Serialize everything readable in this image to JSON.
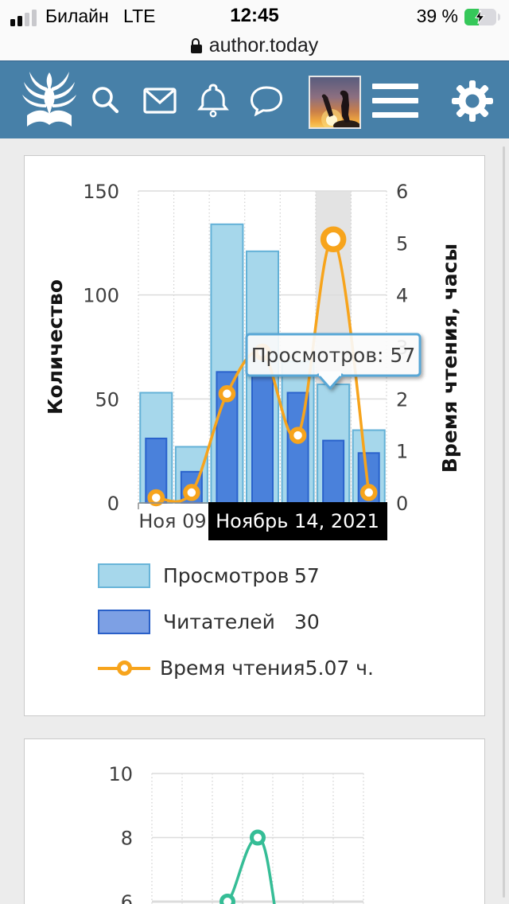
{
  "status_bar": {
    "carrier": "Билайн",
    "network": "LTE",
    "time": "12:45",
    "battery": "39 %"
  },
  "url_bar": {
    "domain": "author.today"
  },
  "header": {
    "bg_color": "#4780a8",
    "icons": [
      "logo",
      "search",
      "mail",
      "bell",
      "chat",
      "avatar",
      "menu",
      "gear"
    ]
  },
  "chart_data": [
    {
      "type": "bar",
      "num_columns": 7,
      "x_visible_label": "Ноя 09",
      "selected_column": 6,
      "selected_date_label": "Ноябрь 14, 2021",
      "tooltip_text": "Просмотров: 57",
      "ylabel_left": "Количество",
      "ylabel_right": "Время чтения, часы",
      "yticks_left": [
        0,
        50,
        100,
        150
      ],
      "yticks_right": [
        0,
        1,
        2,
        3,
        4,
        5,
        6
      ],
      "ylim_left": [
        0,
        150
      ],
      "ylim_right": [
        0,
        6
      ],
      "highlight_color": "#e3e3e3",
      "series": [
        {
          "name": "Просмотров",
          "kind": "bar",
          "axis": "left",
          "color": "#a6d7eb",
          "border": "#63b1d7",
          "values": [
            53,
            27,
            134,
            121,
            68,
            57,
            35
          ]
        },
        {
          "name": "Читателей",
          "kind": "bar",
          "axis": "left",
          "color": "#4a81db",
          "border": "#2a62cc",
          "values": [
            31,
            15,
            63,
            61,
            53,
            30,
            24
          ]
        },
        {
          "name": "Время чтения",
          "kind": "line",
          "axis": "right",
          "color": "#f7a41c",
          "values": [
            0.1,
            0.2,
            2.1,
            2.9,
            1.3,
            5.07,
            0.2
          ]
        }
      ],
      "legend": [
        {
          "label": "Просмотров",
          "value": "57"
        },
        {
          "label": "Читателей",
          "value": "30"
        },
        {
          "label": "Время чтения",
          "value": "5.07 ч."
        }
      ]
    },
    {
      "type": "line",
      "color": "#35bd96",
      "num_columns": 7,
      "yticks_visible": [
        10,
        8,
        6
      ],
      "visible_points": [
        {
          "column": 3,
          "value": 6
        },
        {
          "column": 4,
          "value": 8
        }
      ]
    }
  ]
}
